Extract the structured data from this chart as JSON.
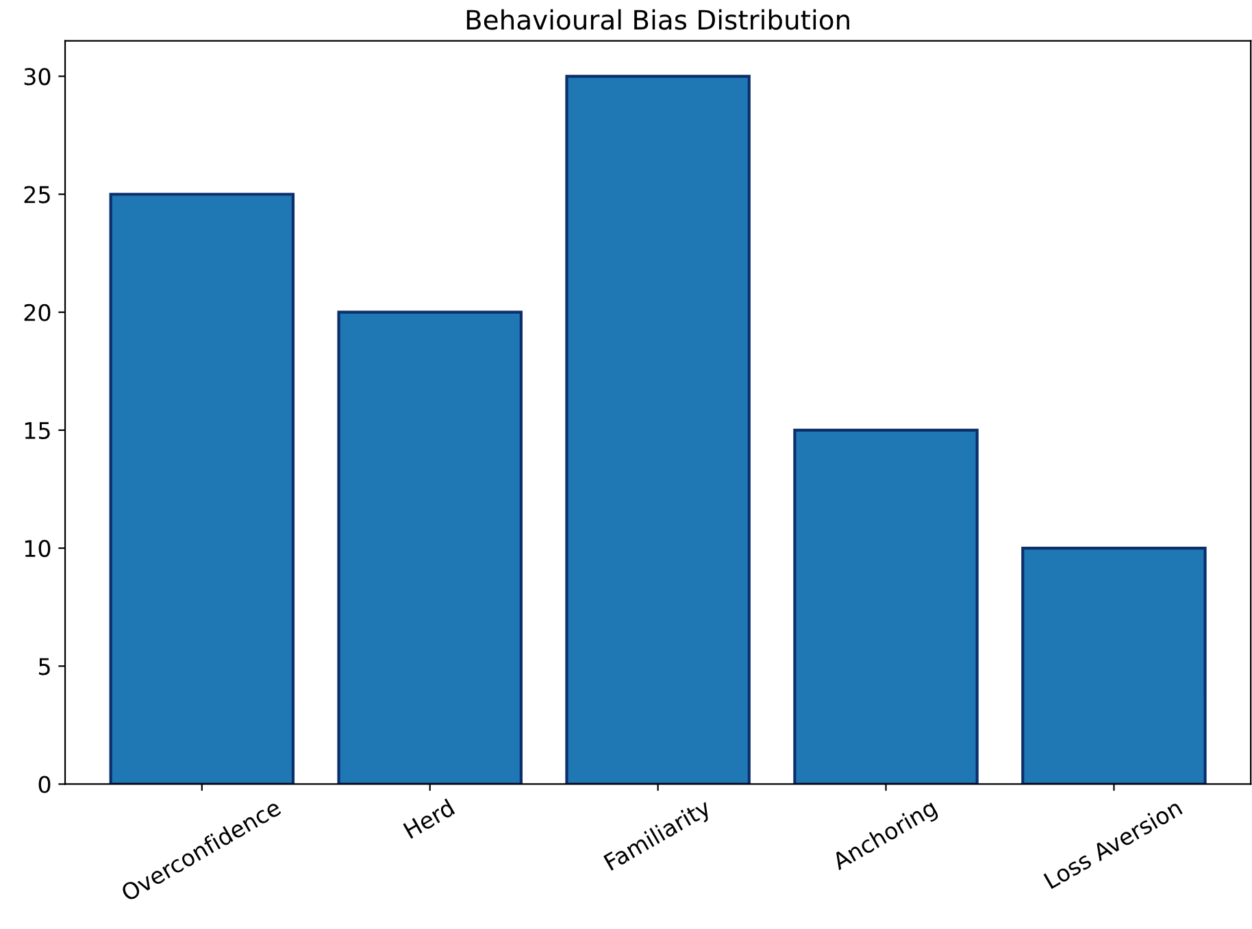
{
  "chart_data": {
    "type": "bar",
    "title": "Behavioural Bias Distribution",
    "categories": [
      "Overconfidence",
      "Herd",
      "Familiarity",
      "Anchoring",
      "Loss Aversion"
    ],
    "values": [
      25,
      20,
      30,
      15,
      10
    ],
    "color": "#1f77b4",
    "ylim": [
      0,
      31.5
    ],
    "yticks": [
      0,
      5,
      10,
      15,
      20,
      25,
      30
    ],
    "grid": false,
    "legend": false
  }
}
